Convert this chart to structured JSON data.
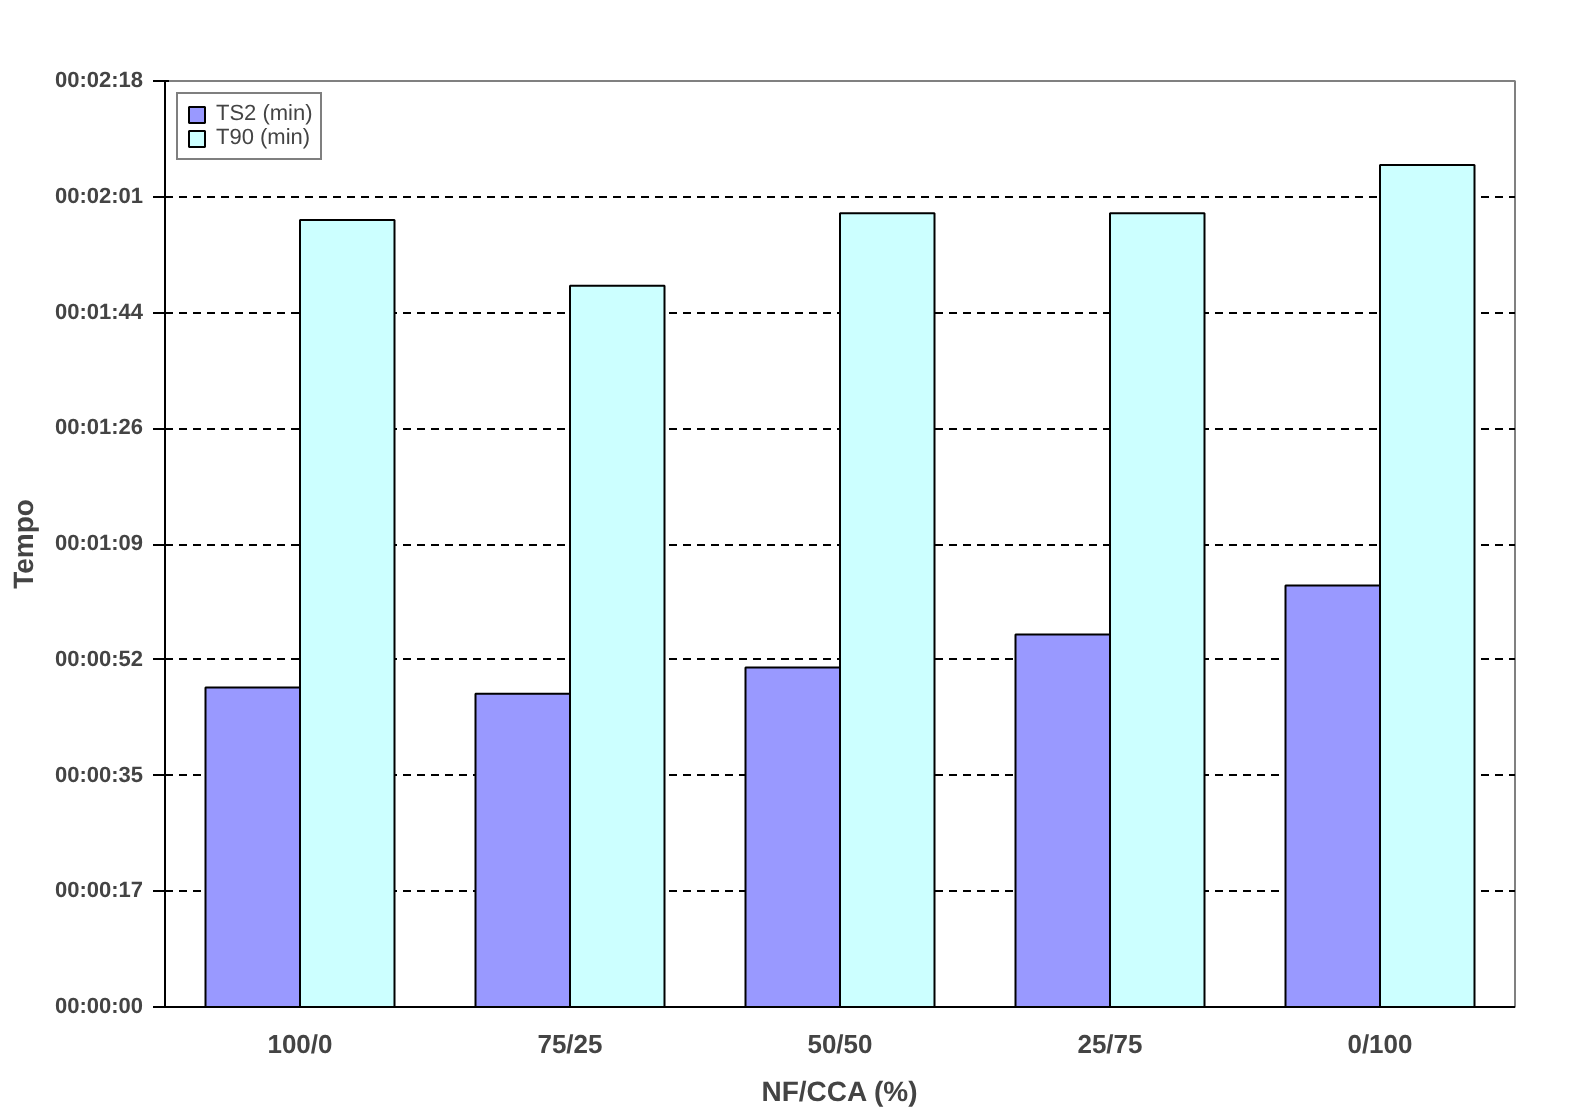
{
  "chart_data": {
    "type": "bar",
    "xlabel": "NF/CCA (%)",
    "ylabel": "Tempo",
    "categories": [
      "100/0",
      "75/25",
      "50/50",
      "25/75",
      "0/100"
    ],
    "series": [
      {
        "name": "TS2 (min)",
        "color": "#9999ff",
        "values": [
          47.6,
          46.7,
          50.6,
          55.5,
          62.8
        ]
      },
      {
        "name": "T90 (min)",
        "color": "#ccffff",
        "values": [
          117.3,
          107.5,
          118.3,
          118.3,
          125.5
        ]
      }
    ],
    "ylim": [
      0,
      138
    ],
    "yticks": [
      {
        "value": 0,
        "label": "00:00:00"
      },
      {
        "value": 17.25,
        "label": "00:00:17"
      },
      {
        "value": 34.5,
        "label": "00:00:35"
      },
      {
        "value": 51.75,
        "label": "00:00:52"
      },
      {
        "value": 69,
        "label": "00:01:09"
      },
      {
        "value": 86.25,
        "label": "00:01:26"
      },
      {
        "value": 103.5,
        "label": "00:01:44"
      },
      {
        "value": 120.75,
        "label": "00:02:01"
      },
      {
        "value": 138,
        "label": "00:02:18"
      }
    ],
    "grid": "y",
    "legend": "top left"
  }
}
